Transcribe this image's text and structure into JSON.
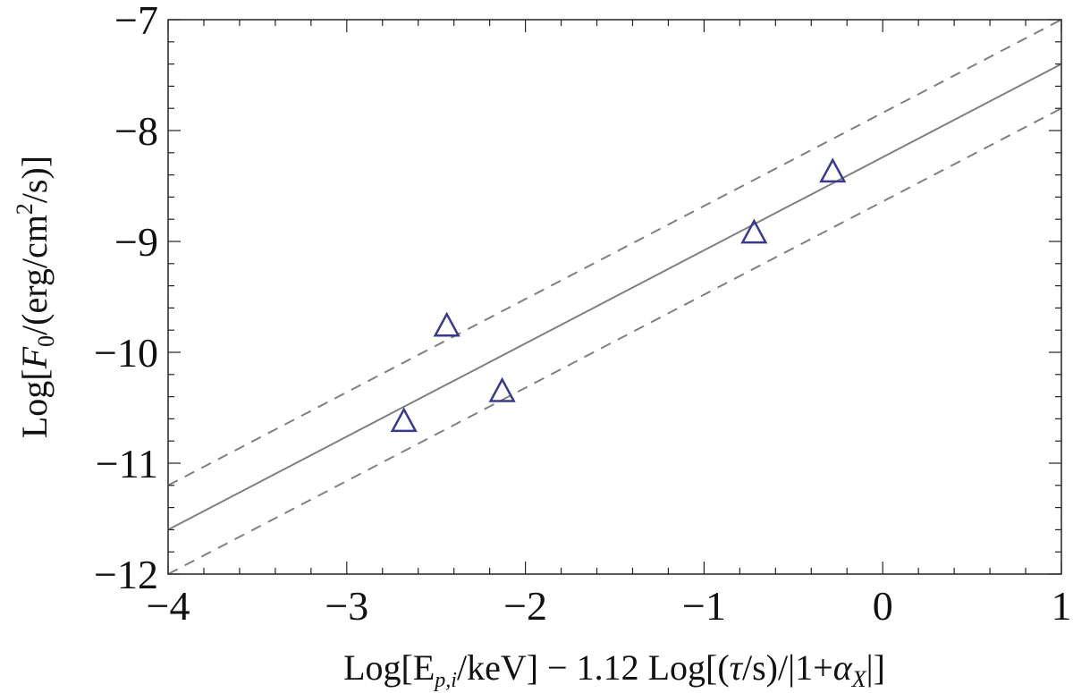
{
  "chart_data": {
    "type": "scatter",
    "xlabel": {
      "prefix": "Log[E",
      "sub": "p,i",
      "mid": "/keV] − 1.12 Log[(",
      "tau": "τ",
      "mid2": "/s)/|1+",
      "alpha": "α",
      "sub2": "X",
      "suffix": "|]"
    },
    "ylabel": {
      "prefix": "Log[",
      "F": "F",
      "sub": "0",
      "mid": "/(erg/cm",
      "sup": "2",
      "suffix": "/s)]"
    },
    "xlim": [
      -4,
      1
    ],
    "ylim": [
      -12,
      -7
    ],
    "xticks": [
      -4,
      -3,
      -2,
      -1,
      0,
      1
    ],
    "yticks": [
      -12,
      -11,
      -10,
      -9,
      -8,
      -7
    ],
    "tick_labels": {
      "x": [
        "−4",
        "−3",
        "−2",
        "−1",
        "0",
        "1"
      ],
      "y": [
        "−12",
        "−11",
        "−10",
        "−9",
        "−8",
        "−7"
      ]
    },
    "points": [
      {
        "x": -2.68,
        "y": -10.62
      },
      {
        "x": -2.44,
        "y": -9.76
      },
      {
        "x": -2.13,
        "y": -10.35
      },
      {
        "x": -0.72,
        "y": -8.92
      },
      {
        "x": -0.28,
        "y": -8.37
      }
    ],
    "fit": {
      "slope": 0.84,
      "intercept": -8.24
    },
    "scatter_band": 0.4,
    "marker": "open-triangle",
    "colors": {
      "marker": "#3a3a8c",
      "lines": "#808080",
      "frame": "#222222"
    },
    "grid": false
  }
}
